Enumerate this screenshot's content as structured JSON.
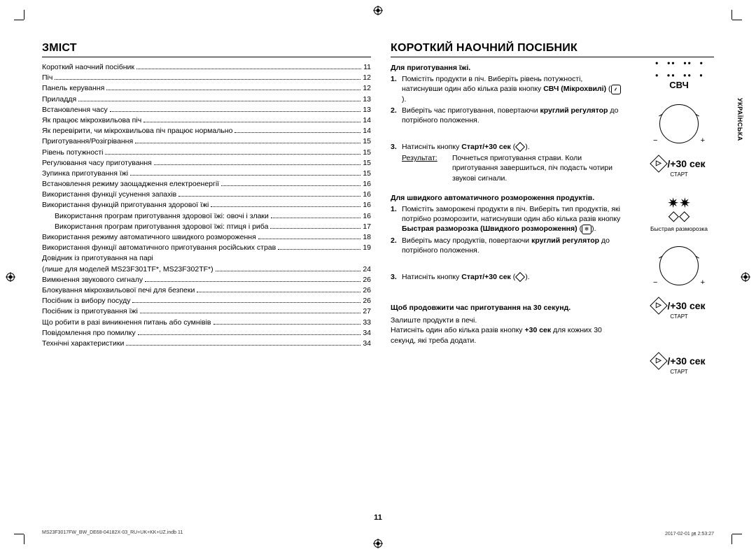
{
  "page_number": "11",
  "side_tab": "УКРАЇНСЬКА",
  "footer_left": "MS23F3017FW_BW_DE68-04182X-03_RU+UK+KK+UZ.indb   11",
  "footer_right": "2017-02-01   ㏘ 2:53:27",
  "toc": {
    "heading": "ЗМІСТ",
    "items": [
      {
        "t": "Короткий наочний посібник",
        "p": "11",
        "i": 0
      },
      {
        "t": "Піч",
        "p": "12",
        "i": 0
      },
      {
        "t": "Панель керування",
        "p": "12",
        "i": 0
      },
      {
        "t": "Приладдя",
        "p": "13",
        "i": 0
      },
      {
        "t": "Встановлення часу",
        "p": "13",
        "i": 0
      },
      {
        "t": "Як працює мікрохвильова піч",
        "p": "14",
        "i": 0
      },
      {
        "t": "Як перевірити, чи мікрохвильова піч працює нормально",
        "p": "14",
        "i": 0
      },
      {
        "t": "Приготування/Розігрівання",
        "p": "15",
        "i": 0
      },
      {
        "t": "Рівень потужності",
        "p": "15",
        "i": 0
      },
      {
        "t": "Регулювання часу приготування",
        "p": "15",
        "i": 0
      },
      {
        "t": "Зупинка приготування їжі",
        "p": "15",
        "i": 0
      },
      {
        "t": "Встановлення режиму заощадження електроенергії",
        "p": "16",
        "i": 0
      },
      {
        "t": "Використання функції усунення запахів",
        "p": "16",
        "i": 0
      },
      {
        "t": "Використання функцій приготування здорової їжі",
        "p": "16",
        "i": 0
      },
      {
        "t": "Використання програм приготування здорової їжі: овочі і злаки",
        "p": "16",
        "i": 1
      },
      {
        "t": "Використання програм приготування здорової їжі: птиця і риба",
        "p": "17",
        "i": 1
      },
      {
        "t": "Використання режиму автоматичного швидкого розмороження",
        "p": "18",
        "i": 0
      },
      {
        "t": "Використання функції автоматичного приготування російських страв",
        "p": "19",
        "i": 0
      },
      {
        "t": "Довідник із приготування на парі",
        "p": "",
        "i": 0
      },
      {
        "t": "(лише для моделей MS23F301TF*, MS23F302TF*)",
        "p": "24",
        "i": 0
      },
      {
        "t": "Вимкнення звукового сигналу",
        "p": "26",
        "i": 0
      },
      {
        "t": "Блокування мікрохвильової печі для безпеки",
        "p": "26",
        "i": 0
      },
      {
        "t": "Посібник із вибору посуду",
        "p": "26",
        "i": 0
      },
      {
        "t": "Посібник із приготування їжі",
        "p": "27",
        "i": 0
      },
      {
        "t": "Що робити в разі виникнення питань або сумнівів",
        "p": "33",
        "i": 0
      },
      {
        "t": "Повідомлення про помилку",
        "p": "34",
        "i": 0
      },
      {
        "t": "Технічні характеристики",
        "p": "34",
        "i": 0
      }
    ]
  },
  "guide": {
    "heading": "КОРОТКИЙ НАОЧНИЙ ПОСІБНИК",
    "s1_title": "Для приготування їжі.",
    "s1_1": "Помістіть продукти в піч. Виберіть рівень потужності, натиснувши один або кілька разів кнопку ",
    "s1_1b": "СВЧ (Мікрохвилі)",
    "s1_2a": "Виберіть час приготування, повертаючи ",
    "s1_2b": "круглий регулятор",
    "s1_2c": " до потрібного положення.",
    "s1_3a": "Натисніть кнопку ",
    "s1_3b": "Старт/+30 сек",
    "result_label": "Результат:",
    "result_txt": "Почнеться приготування страви. Коли приготування завершиться, піч подасть чотири звукові сигнали.",
    "s2_title": "Для швидкого автоматичного розмороження продуктів.",
    "s2_1": "Помістіть заморожені продукти в піч. Виберіть тип продуктів, які потрібно розморозити, натиснувши один або кілька разів кнопку ",
    "s2_1b": "Быстрая разморозка (Швидкого розмороження)",
    "s2_2a": "Виберіть масу продуктів, повертаючи ",
    "s2_2b": "круглий регулятор",
    "s2_2c": " до потрібного положення.",
    "s2_3a": "Натисніть кнопку ",
    "s2_3b": "Старт/+30 сек",
    "s3_title": "Щоб продовжити час приготування на 30 секунд.",
    "s3_1": "Залиште продукти в печі.",
    "s3_2a": "Натисніть один або кілька разів кнопку ",
    "s3_2b": "+30 сек",
    "s3_2c": " для кожних 30 секунд, які треба додати."
  },
  "icons": {
    "mw_label": "СВЧ",
    "start30": "/+30 сек",
    "start_sub": "СТАРТ",
    "defrost_label": "Быстрая разморозка"
  }
}
